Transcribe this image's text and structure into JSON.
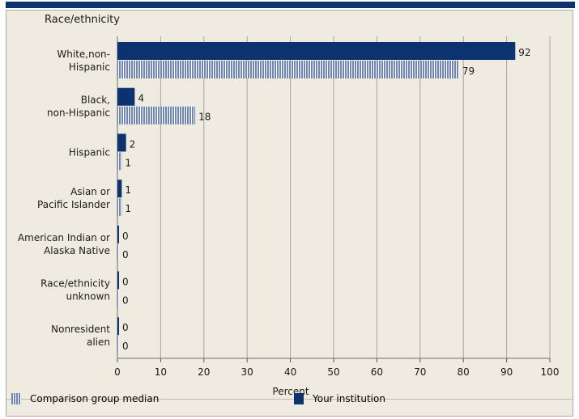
{
  "chart_data": {
    "type": "bar",
    "orientation": "horizontal",
    "title": "Race/ethnicity",
    "xlabel": "Percent",
    "xlim": [
      0,
      100
    ],
    "xticks": [
      0,
      10,
      20,
      30,
      40,
      50,
      60,
      70,
      80,
      90,
      100
    ],
    "grid": true,
    "categories": [
      [
        "White,non-",
        "Hispanic"
      ],
      [
        "Black,",
        "non-Hispanic"
      ],
      [
        "Hispanic"
      ],
      [
        "Asian or",
        "Pacific Islander"
      ],
      [
        "American Indian or",
        "Alaska Native"
      ],
      [
        "Race/ethnicity",
        "unknown"
      ],
      [
        "Nonresident",
        "alien"
      ]
    ],
    "series": [
      {
        "name": "Your institution",
        "values": [
          92,
          4,
          2,
          1,
          0,
          0,
          0
        ],
        "color": "#0c3370"
      },
      {
        "name": "Comparison group median",
        "values": [
          79,
          18,
          1,
          1,
          0,
          0,
          0
        ],
        "color": "#6f86b7",
        "pattern": "striped"
      }
    ],
    "legend": {
      "placement": "bottom",
      "items": [
        "Comparison group median",
        "Your institution"
      ]
    }
  }
}
